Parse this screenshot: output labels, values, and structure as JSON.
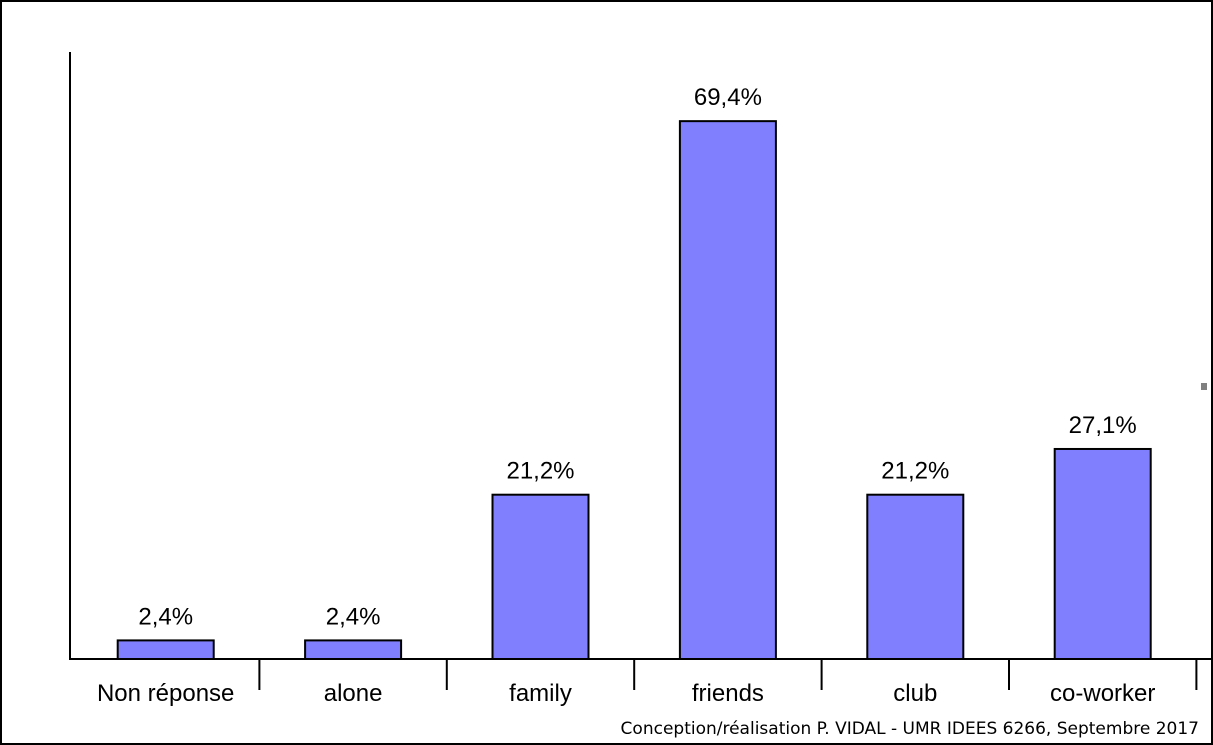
{
  "credit": "Conception/réalisation P. VIDAL - UMR IDEES 6266, Septembre 2017",
  "chart_data": {
    "type": "bar",
    "categories": [
      "Non réponse",
      "alone",
      "family",
      "friends",
      "club",
      "co-worker"
    ],
    "values": [
      2.4,
      2.4,
      21.2,
      69.4,
      21.2,
      27.1
    ],
    "value_labels": [
      "2,4%",
      "2,4%",
      "21,2%",
      "69,4%",
      "21,2%",
      "27,1%"
    ],
    "ylim": [
      0,
      80
    ],
    "bar_color": "#8080ff",
    "bar_stroke": "#000000",
    "grid": false,
    "legend": false
  }
}
